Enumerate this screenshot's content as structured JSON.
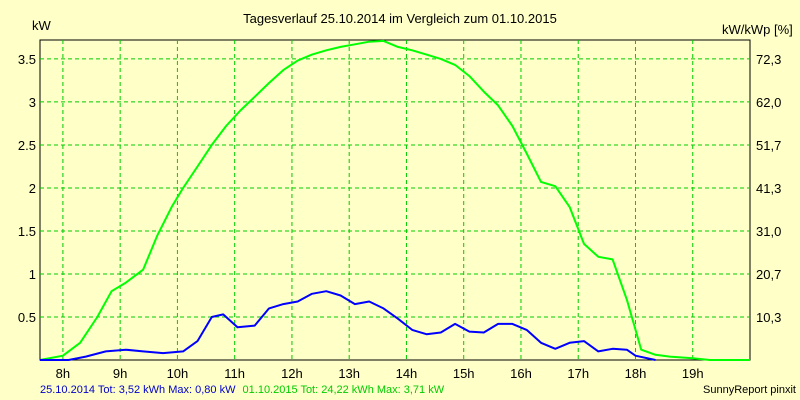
{
  "chart_data": {
    "type": "line",
    "title": "Tagesverlauf 25.10.2014 im Vergleich zum 01.10.2015",
    "ylabel_left": "kW",
    "ylabel_right": "kW/kWp [%]",
    "x_ticks": [
      "8h",
      "9h",
      "10h",
      "11h",
      "12h",
      "13h",
      "14h",
      "15h",
      "16h",
      "17h",
      "18h",
      "19h"
    ],
    "xlim": [
      7.6,
      20.0
    ],
    "ylim": [
      0,
      3.72
    ],
    "y_ticks": [
      0.5,
      1,
      1.5,
      2,
      2.5,
      3,
      3.5
    ],
    "y_tick_labels": [
      "0.5",
      "1",
      "1.5",
      "2",
      "2.5",
      "3",
      "3.5"
    ],
    "y2_ticks": [
      "10,3",
      "20,7",
      "31,0",
      "41,3",
      "51,7",
      "62,0",
      "72,3"
    ],
    "grid": true,
    "background_color": "#ffffc8",
    "grid_color": "#00cc00",
    "series": [
      {
        "name": "25.10.2014",
        "color": "#0000ff",
        "x": [
          7.6,
          8.1,
          8.4,
          8.75,
          9.1,
          9.4,
          9.75,
          10.1,
          10.35,
          10.6,
          10.8,
          11.05,
          11.35,
          11.6,
          11.85,
          12.1,
          12.35,
          12.6,
          12.85,
          13.1,
          13.35,
          13.6,
          13.85,
          14.1,
          14.35,
          14.6,
          14.85,
          15.1,
          15.35,
          15.6,
          15.85,
          16.1,
          16.35,
          16.6,
          16.85,
          17.1,
          17.35,
          17.6,
          17.85,
          18.0,
          18.35
        ],
        "values": [
          0.0,
          0.0,
          0.04,
          0.1,
          0.12,
          0.1,
          0.08,
          0.1,
          0.22,
          0.5,
          0.53,
          0.38,
          0.4,
          0.6,
          0.65,
          0.68,
          0.77,
          0.8,
          0.75,
          0.65,
          0.68,
          0.6,
          0.48,
          0.35,
          0.3,
          0.32,
          0.42,
          0.33,
          0.32,
          0.42,
          0.42,
          0.35,
          0.2,
          0.13,
          0.2,
          0.22,
          0.1,
          0.13,
          0.12,
          0.05,
          0.0
        ]
      },
      {
        "name": "01.10.2015",
        "color": "#00ff00",
        "x": [
          7.6,
          8.0,
          8.3,
          8.6,
          8.85,
          9.1,
          9.4,
          9.65,
          9.9,
          10.1,
          10.35,
          10.6,
          10.85,
          11.1,
          11.35,
          11.6,
          11.85,
          12.1,
          12.35,
          12.6,
          12.85,
          13.1,
          13.35,
          13.6,
          13.85,
          14.1,
          14.35,
          14.6,
          14.85,
          15.1,
          15.35,
          15.6,
          15.85,
          16.1,
          16.35,
          16.6,
          16.85,
          17.1,
          17.35,
          17.6,
          17.85,
          18.1,
          18.35,
          18.6,
          19.0,
          19.3,
          20.0
        ],
        "values": [
          0.0,
          0.05,
          0.2,
          0.5,
          0.8,
          0.9,
          1.05,
          1.45,
          1.78,
          2.0,
          2.25,
          2.5,
          2.72,
          2.9,
          3.06,
          3.22,
          3.37,
          3.48,
          3.55,
          3.6,
          3.64,
          3.67,
          3.7,
          3.71,
          3.64,
          3.6,
          3.55,
          3.5,
          3.43,
          3.3,
          3.12,
          2.96,
          2.72,
          2.4,
          2.07,
          2.02,
          1.78,
          1.35,
          1.2,
          1.17,
          0.7,
          0.12,
          0.06,
          0.04,
          0.02,
          0.0,
          0.0
        ]
      }
    ],
    "footer": {
      "series1_summary": "25.10.2014 Tot: 3,52 kWh Max: 0,80 kW",
      "series2_summary": "01.10.2015 Tot: 24,22 kWh Max: 3,71 kW",
      "credit": "SunnyReport pinxit"
    }
  }
}
